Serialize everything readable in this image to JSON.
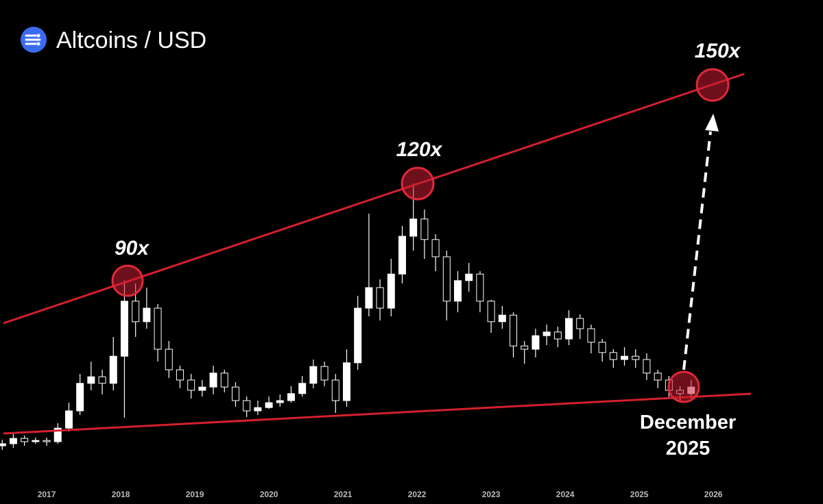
{
  "chart_data": {
    "type": "candlestick",
    "title": "Altcoins / USD",
    "x": [
      2016.4,
      2016.55,
      2016.7,
      2016.85,
      2017.0,
      2017.15,
      2017.3,
      2017.45,
      2017.6,
      2017.75,
      2017.9,
      2018.05,
      2018.2,
      2018.35,
      2018.5,
      2018.65,
      2018.8,
      2018.95,
      2019.1,
      2019.25,
      2019.4,
      2019.55,
      2019.7,
      2019.85,
      2020.0,
      2020.15,
      2020.3,
      2020.45,
      2020.6,
      2020.75,
      2020.9,
      2021.05,
      2021.2,
      2021.35,
      2021.5,
      2021.65,
      2021.8,
      2021.95,
      2022.1,
      2022.25,
      2022.4,
      2022.55,
      2022.7,
      2022.85,
      2023.0,
      2023.15,
      2023.3,
      2023.45,
      2023.6,
      2023.75,
      2023.9,
      2024.05,
      2024.2,
      2024.35,
      2024.5,
      2024.65,
      2024.8,
      2024.95,
      2025.1,
      2025.25,
      2025.4,
      2025.55,
      2025.7
    ],
    "open": [
      1.5,
      2,
      3.3,
      2.5,
      2.8,
      2.5,
      5.8,
      10,
      16.7,
      18.3,
      16.7,
      23.3,
      36.7,
      31.7,
      35,
      25,
      20,
      17.5,
      15,
      15.8,
      19.2,
      15.8,
      12.5,
      10,
      10.8,
      12,
      12.5,
      14.2,
      16.7,
      20.8,
      17.5,
      12.5,
      21.7,
      35,
      40,
      35,
      43.3,
      52.5,
      56.7,
      51.7,
      47.5,
      36.7,
      41.7,
      43.3,
      36.7,
      31.7,
      33.3,
      25.8,
      25,
      28.3,
      29.2,
      27.5,
      32.5,
      30,
      26.7,
      24.2,
      22.5,
      23.3,
      22.5,
      19.2,
      17.5,
      15,
      14.2
    ],
    "high": [
      3,
      4.5,
      4,
      3.5,
      3.5,
      7,
      12,
      19,
      22,
      20,
      28,
      41.7,
      41,
      40,
      36,
      27,
      21,
      19,
      17.5,
      21,
      20,
      17,
      13.5,
      12.5,
      13.5,
      14,
      16,
      18.5,
      22.5,
      22,
      19,
      25,
      38,
      58,
      42,
      47,
      55,
      65.3,
      59,
      53,
      49,
      44,
      46,
      44,
      37,
      35.5,
      34,
      27,
      30,
      31,
      30.5,
      34.5,
      33.5,
      31,
      27.5,
      25,
      25.5,
      25,
      24,
      20,
      18.5,
      16,
      17.5
    ],
    "low": [
      0.5,
      1,
      1.5,
      2,
      1.5,
      2,
      5,
      9,
      15,
      14,
      15,
      8.3,
      28,
      30,
      22,
      18,
      15.5,
      13,
      13.5,
      14,
      14.5,
      11,
      8.5,
      9,
      10.5,
      11,
      12,
      13.5,
      15.5,
      16,
      9.5,
      11,
      20,
      33,
      32,
      33,
      41,
      49,
      47,
      44,
      32,
      34,
      39,
      34,
      29,
      30,
      23,
      21.5,
      23,
      26,
      25.5,
      26,
      27.5,
      24,
      22,
      20.5,
      21,
      20.5,
      17.5,
      15.5,
      13,
      12.5,
      13
    ],
    "close": [
      2,
      3.3,
      2.5,
      2.8,
      2.5,
      5.8,
      10,
      16.7,
      18.3,
      16.7,
      23.3,
      36.7,
      31.7,
      35,
      25,
      20,
      17.5,
      15,
      15.8,
      19.2,
      15.8,
      12.5,
      10,
      10.8,
      12,
      12.5,
      14.2,
      16.7,
      20.8,
      17.5,
      12.5,
      21.7,
      35,
      40,
      35,
      43.3,
      52.5,
      56.7,
      51.7,
      47.5,
      36.7,
      41.7,
      43.3,
      36.7,
      31.7,
      33.3,
      25.8,
      25,
      28.3,
      29.2,
      27.5,
      32.5,
      30,
      26.7,
      24.2,
      22.5,
      23.3,
      22.5,
      19.2,
      17.5,
      15,
      14.2,
      15.8
    ],
    "color": "#ffffff",
    "xlim": [
      2016.37,
      2027.48
    ],
    "xticks": [
      2017,
      2018,
      2019,
      2020,
      2021,
      2022,
      2023,
      2024,
      2025,
      2026
    ],
    "ylim": [
      0,
      110
    ],
    "annotations": [
      "90x",
      "120x",
      "150x",
      "December 2025"
    ]
  }
}
